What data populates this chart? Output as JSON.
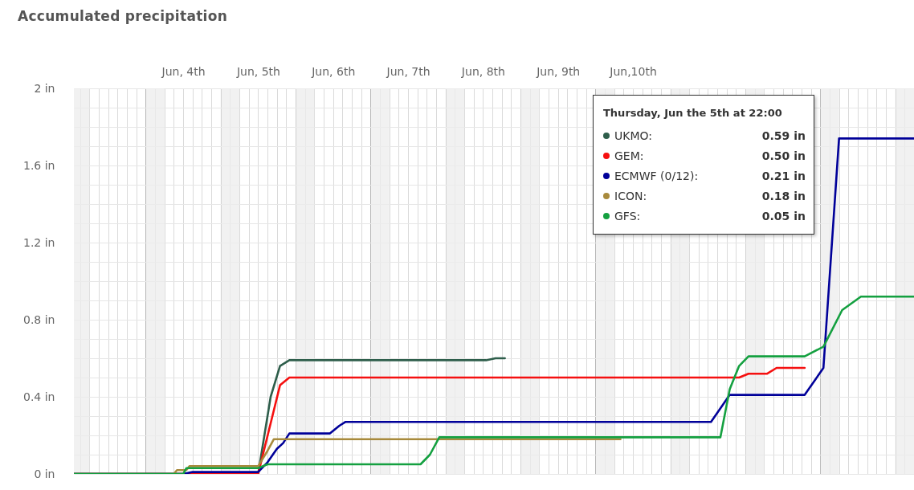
{
  "chart_data": {
    "type": "line",
    "title": "Accumulated precipitation",
    "xlim": [
      "--06-03T01:00",
      "--06-14T06:00"
    ],
    "xticks": [
      {
        "value": "--06-03T03:00",
        "label": null
      },
      {
        "value": "--06-03T06:00",
        "label": null
      },
      {
        "value": "--06-03T09:00",
        "label": null
      },
      {
        "value": "--06-03T12:00",
        "label": null
      },
      {
        "value": "--06-03T15:00",
        "label": null
      },
      {
        "value": "--06-03T18:00",
        "label": null
      },
      {
        "value": "--06-03T21:00",
        "label": null
      },
      {
        "value": "--06-04T00:00",
        "label": null
      },
      {
        "value": "--06-04T03:00",
        "label": null
      },
      {
        "value": "--06-04T06:00",
        "label": null
      },
      {
        "value": "--06-04T09:00",
        "label": null
      },
      {
        "value": "--06-04T12:00",
        "label": "Jun, 4th"
      },
      {
        "value": "--06-04T15:00",
        "label": null
      },
      {
        "value": "--06-04T18:00",
        "label": null
      },
      {
        "value": "--06-04T21:00",
        "label": null
      },
      {
        "value": "--06-05T00:00",
        "label": null
      },
      {
        "value": "--06-05T03:00",
        "label": null
      },
      {
        "value": "--06-05T06:00",
        "label": null
      },
      {
        "value": "--06-05T09:00",
        "label": null
      },
      {
        "value": "--06-05T12:00",
        "label": "Jun, 5th"
      },
      {
        "value": "--06-05T15:00",
        "label": null
      },
      {
        "value": "--06-05T18:00",
        "label": null
      },
      {
        "value": "--06-05T21:00",
        "label": null
      },
      {
        "value": "--06-06T00:00",
        "label": null
      },
      {
        "value": "--06-06T03:00",
        "label": null
      },
      {
        "value": "--06-06T06:00",
        "label": null
      },
      {
        "value": "--06-06T09:00",
        "label": null
      },
      {
        "value": "--06-06T12:00",
        "label": "Jun, 6th"
      },
      {
        "value": "--06-06T15:00",
        "label": null
      },
      {
        "value": "--06-06T18:00",
        "label": null
      },
      {
        "value": "--06-06T21:00",
        "label": null
      },
      {
        "value": "--06-07T00:00",
        "label": null
      },
      {
        "value": "--06-07T03:00",
        "label": null
      },
      {
        "value": "--06-07T06:00",
        "label": null
      },
      {
        "value": "--06-07T09:00",
        "label": null
      },
      {
        "value": "--06-07T12:00",
        "label": "Jun, 7th"
      },
      {
        "value": "--06-07T15:00",
        "label": null
      },
      {
        "value": "--06-07T18:00",
        "label": null
      },
      {
        "value": "--06-07T21:00",
        "label": null
      },
      {
        "value": "--06-08T00:00",
        "label": null
      },
      {
        "value": "--06-08T03:00",
        "label": null
      },
      {
        "value": "--06-08T06:00",
        "label": null
      },
      {
        "value": "--06-08T09:00",
        "label": null
      },
      {
        "value": "--06-08T12:00",
        "label": "Jun, 8th"
      },
      {
        "value": "--06-08T15:00",
        "label": null
      },
      {
        "value": "--06-08T18:00",
        "label": null
      },
      {
        "value": "--06-08T21:00",
        "label": null
      },
      {
        "value": "--06-09T00:00",
        "label": null
      },
      {
        "value": "--06-09T03:00",
        "label": null
      },
      {
        "value": "--06-09T06:00",
        "label": null
      },
      {
        "value": "--06-09T09:00",
        "label": null
      },
      {
        "value": "--06-09T12:00",
        "label": "Jun, 9th"
      },
      {
        "value": "--06-09T15:00",
        "label": null
      },
      {
        "value": "--06-09T18:00",
        "label": null
      },
      {
        "value": "--06-09T21:00",
        "label": null
      },
      {
        "value": "--06-10T00:00",
        "label": null
      },
      {
        "value": "--06-10T03:00",
        "label": null
      },
      {
        "value": "--06-10T06:00",
        "label": null
      },
      {
        "value": "--06-10T09:00",
        "label": null
      },
      {
        "value": "--06-10T12:00",
        "label": "Jun,10th"
      },
      {
        "value": "--06-10T15:00",
        "label": null
      },
      {
        "value": "--06-10T18:00",
        "label": null
      },
      {
        "value": "--06-10T21:00",
        "label": null
      },
      {
        "value": "--06-11T00:00",
        "label": null
      },
      {
        "value": "--06-11T03:00",
        "label": null
      },
      {
        "value": "--06-11T06:00",
        "label": null
      },
      {
        "value": "--06-11T09:00",
        "label": null
      },
      {
        "value": "--06-11T12:00",
        "label": null
      },
      {
        "value": "--06-11T15:00",
        "label": null
      },
      {
        "value": "--06-11T18:00",
        "label": null
      },
      {
        "value": "--06-11T21:00",
        "label": null
      },
      {
        "value": "--06-12T00:00",
        "label": null
      },
      {
        "value": "--06-12T03:00",
        "label": null
      },
      {
        "value": "--06-12T06:00",
        "label": null
      },
      {
        "value": "--06-12T09:00",
        "label": null
      },
      {
        "value": "--06-12T12:00",
        "label": null
      },
      {
        "value": "--06-12T15:00",
        "label": null
      },
      {
        "value": "--06-12T18:00",
        "label": null
      },
      {
        "value": "--06-12T21:00",
        "label": null
      },
      {
        "value": "--06-13T00:00",
        "label": null
      },
      {
        "value": "--06-13T03:00",
        "label": null
      },
      {
        "value": "--06-13T06:00",
        "label": null
      },
      {
        "value": "--06-13T09:00",
        "label": null
      },
      {
        "value": "--06-13T12:00",
        "label": null
      },
      {
        "value": "--06-13T15:00",
        "label": null
      },
      {
        "value": "--06-13T18:00",
        "label": null
      },
      {
        "value": "--06-13T21:00",
        "label": null
      },
      {
        "value": "--06-14T00:00",
        "label": null
      },
      {
        "value": "--06-14T03:00",
        "label": null
      }
    ],
    "ylim": [
      0,
      2
    ],
    "yticks": [
      {
        "value": 0,
        "label": "0 in"
      },
      {
        "value": 0.1,
        "label": null
      },
      {
        "value": 0.2,
        "label": null
      },
      {
        "value": 0.3,
        "label": null
      },
      {
        "value": 0.4,
        "label": "0.4 in"
      },
      {
        "value": 0.5,
        "label": null
      },
      {
        "value": 0.6,
        "label": null
      },
      {
        "value": 0.7,
        "label": null
      },
      {
        "value": 0.8,
        "label": "0.8 in"
      },
      {
        "value": 0.9,
        "label": null
      },
      {
        "value": 1,
        "label": null
      },
      {
        "value": 1.1,
        "label": null
      },
      {
        "value": 1.2,
        "label": "1.2 in"
      },
      {
        "value": 1.3,
        "label": null
      },
      {
        "value": 1.4,
        "label": null
      },
      {
        "value": 1.5,
        "label": null
      },
      {
        "value": 1.6,
        "label": "1.6 in"
      },
      {
        "value": 1.7,
        "label": null
      },
      {
        "value": 1.8,
        "label": null
      },
      {
        "value": 1.9,
        "label": null
      },
      {
        "value": 2,
        "label": "2 in"
      }
    ],
    "grid": true,
    "legend": "top right",
    "line_style": "solid",
    "bands": [
      {
        "axis": "x",
        "from": "--06-03T01:00",
        "to": "--06-03T06:00",
        "color": "#ececec"
      },
      {
        "axis": "x",
        "from": "--06-04T00:00",
        "to": "--06-04T06:00",
        "color": "#ececec"
      },
      {
        "axis": "x",
        "from": "--06-05T00:00",
        "to": "--06-05T06:00",
        "color": "#ececec"
      },
      {
        "axis": "x",
        "from": "--06-06T00:00",
        "to": "--06-06T06:00",
        "color": "#ececec"
      },
      {
        "axis": "x",
        "from": "--06-07T00:00",
        "to": "--06-07T06:00",
        "color": "#ececec"
      },
      {
        "axis": "x",
        "from": "--06-08T00:00",
        "to": "--06-08T06:00",
        "color": "#ececec"
      },
      {
        "axis": "x",
        "from": "--06-09T00:00",
        "to": "--06-09T06:00",
        "color": "#ececec"
      },
      {
        "axis": "x",
        "from": "--06-10T00:00",
        "to": "--06-10T06:00",
        "color": "#ececec"
      },
      {
        "axis": "x",
        "from": "--06-11T00:00",
        "to": "--06-11T06:00",
        "color": "#ececec"
      },
      {
        "axis": "x",
        "from": "--06-12T00:00",
        "to": "--06-12T06:00",
        "color": "#ececec"
      },
      {
        "axis": "x",
        "from": "--06-13T00:00",
        "to": "--06-13T06:00",
        "color": "#ececec"
      },
      {
        "axis": "x",
        "from": "--06-14T00:00",
        "to": "--06-14T06:00",
        "color": "#ececec"
      }
    ],
    "series": [
      {
        "name": "UKMO:",
        "color": "#2e5e4b",
        "x": [
          "--06-03T01:00",
          "--06-05T12:00",
          "--06-05T16:00",
          "--06-05T19:00",
          "--06-05T22:00",
          "--06-08T13:00",
          "--06-08T16:00",
          "--06-08T19:00"
        ],
        "values": [
          0,
          0,
          0.4,
          0.56,
          0.59,
          0.59,
          0.6,
          0.6
        ]
      },
      {
        "name": "GEM:",
        "color": "#f51010",
        "x": [
          "--06-03T01:00",
          "--06-05T12:00",
          "--06-05T19:00",
          "--06-05T22:00",
          "--06-11T22:00",
          "--06-12T01:00",
          "--06-12T07:00",
          "--06-12T10:00",
          "--06-12T19:00"
        ],
        "values": [
          0,
          0,
          0.46,
          0.5,
          0.5,
          0.52,
          0.52,
          0.55,
          0.55
        ]
      },
      {
        "name": "ECMWF (0/12):",
        "color": "#000099",
        "x": [
          "--06-03T01:00",
          "--06-04T12:00",
          "--06-04T15:00",
          "--06-05T12:00",
          "--06-05T15:00",
          "--06-05T18:00",
          "--06-05T20:00",
          "--06-05T22:00",
          "--06-06T11:00",
          "--06-06T14:00",
          "--06-06T16:00",
          "--06-11T13:00",
          "--06-11T19:00",
          "--06-12T19:00",
          "--06-13T01:00",
          "--06-13T06:00",
          "--06-14T06:00"
        ],
        "values": [
          0,
          0,
          0.01,
          0.01,
          0.06,
          0.13,
          0.16,
          0.21,
          0.21,
          0.25,
          0.27,
          0.27,
          0.41,
          0.41,
          0.55,
          1.74,
          1.74
        ]
      },
      {
        "name": "ICON:",
        "color": "#a88a3c",
        "x": [
          "--06-03T01:00",
          "--06-04T09:00",
          "--06-04T10:00",
          "--06-04T13:00",
          "--06-04T14:00",
          "--06-05T12:00",
          "--06-05T15:00",
          "--06-05T17:00",
          "--06-10T08:00"
        ],
        "values": [
          0,
          0,
          0.02,
          0.02,
          0.04,
          0.04,
          0.12,
          0.18,
          0.18
        ]
      },
      {
        "name": "GFS:",
        "color": "#14a040",
        "x": [
          "--06-03T01:00",
          "--06-04T12:00",
          "--06-04T13:00",
          "--06-05T12:00",
          "--06-05T15:00",
          "--06-07T16:00",
          "--06-07T19:00",
          "--06-07T22:00",
          "--06-11T16:00",
          "--06-11T19:00",
          "--06-11T22:00",
          "--06-12T01:00",
          "--06-12T19:00",
          "--06-13T01:00",
          "--06-13T07:00",
          "--06-13T13:00",
          "--06-14T06:00"
        ],
        "values": [
          0,
          0,
          0.03,
          0.03,
          0.05,
          0.05,
          0.1,
          0.19,
          0.19,
          0.44,
          0.56,
          0.61,
          0.61,
          0.66,
          0.85,
          0.92,
          0.92
        ]
      }
    ],
    "annotations": [
      "Thursday, Jun the 5th at 22:00",
      "0.59 in",
      "0.50 in",
      "0.21 in",
      "0.18 in",
      "0.05 in"
    ]
  }
}
